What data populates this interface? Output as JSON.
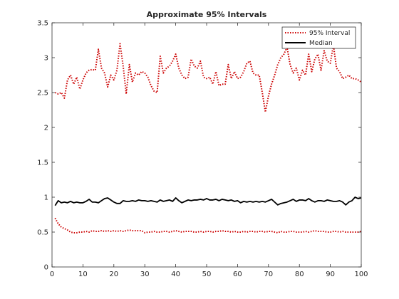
{
  "chart_data": {
    "type": "line",
    "title": "Approximate 95% Intervals",
    "xlabel": "",
    "ylabel": "",
    "xlim": [
      0,
      100
    ],
    "ylim": [
      0,
      3.5
    ],
    "xticks": [
      0,
      10,
      20,
      30,
      40,
      50,
      60,
      70,
      80,
      90,
      100
    ],
    "yticks": [
      0,
      0.5,
      1,
      1.5,
      2,
      2.5,
      3,
      3.5
    ],
    "grid": false,
    "legend_position": "top-right",
    "legend": [
      {
        "label": "95% Interval",
        "color": "#cc0000",
        "style": "dotted"
      },
      {
        "label": "Median",
        "color": "#000000",
        "style": "solid"
      }
    ],
    "series": [
      {
        "name": "95% Interval",
        "role": "upper",
        "color": "#cc0000",
        "style": "dotted",
        "x": [
          1,
          2,
          3,
          4,
          5,
          6,
          7,
          8,
          9,
          10,
          11,
          12,
          13,
          14,
          15,
          16,
          17,
          18,
          19,
          20,
          21,
          22,
          23,
          24,
          25,
          26,
          27,
          28,
          29,
          30,
          31,
          32,
          33,
          34,
          35,
          36,
          37,
          38,
          39,
          40,
          41,
          42,
          43,
          44,
          45,
          46,
          47,
          48,
          49,
          50,
          51,
          52,
          53,
          54,
          55,
          56,
          57,
          58,
          59,
          60,
          61,
          62,
          63,
          64,
          65,
          66,
          67,
          68,
          69,
          70,
          71,
          72,
          73,
          74,
          75,
          76,
          77,
          78,
          79,
          80,
          81,
          82,
          83,
          84,
          85,
          86,
          87,
          88,
          89,
          90,
          91,
          92,
          93,
          94,
          95,
          96,
          97,
          98,
          99,
          100
        ],
        "y": [
          2.5,
          2.48,
          2.5,
          2.42,
          2.68,
          2.75,
          2.62,
          2.72,
          2.55,
          2.68,
          2.78,
          2.82,
          2.83,
          2.82,
          3.12,
          2.85,
          2.78,
          2.58,
          2.75,
          2.68,
          2.82,
          3.2,
          2.88,
          2.48,
          2.9,
          2.65,
          2.78,
          2.75,
          2.8,
          2.78,
          2.72,
          2.6,
          2.52,
          2.5,
          3.02,
          2.78,
          2.85,
          2.88,
          2.95,
          3.05,
          2.85,
          2.75,
          2.7,
          2.72,
          2.98,
          2.88,
          2.85,
          2.95,
          2.72,
          2.7,
          2.72,
          2.62,
          2.8,
          2.6,
          2.62,
          2.62,
          2.9,
          2.7,
          2.8,
          2.7,
          2.72,
          2.8,
          2.92,
          2.95,
          2.78,
          2.75,
          2.75,
          2.5,
          2.22,
          2.45,
          2.62,
          2.75,
          2.9,
          3.0,
          3.05,
          3.15,
          2.9,
          2.78,
          2.85,
          2.68,
          2.82,
          2.75,
          3.05,
          2.8,
          2.98,
          3.05,
          2.82,
          3.1,
          2.95,
          2.92,
          3.18,
          2.85,
          2.8,
          2.7,
          2.72,
          2.75,
          2.7,
          2.7,
          2.68,
          2.65
        ]
      },
      {
        "name": "Median",
        "role": "median",
        "color": "#000000",
        "style": "solid",
        "x": [
          1,
          2,
          3,
          4,
          5,
          6,
          7,
          8,
          9,
          10,
          11,
          12,
          13,
          14,
          15,
          16,
          17,
          18,
          19,
          20,
          21,
          22,
          23,
          24,
          25,
          26,
          27,
          28,
          29,
          30,
          31,
          32,
          33,
          34,
          35,
          36,
          37,
          38,
          39,
          40,
          41,
          42,
          43,
          44,
          45,
          46,
          47,
          48,
          49,
          50,
          51,
          52,
          53,
          54,
          55,
          56,
          57,
          58,
          59,
          60,
          61,
          62,
          63,
          64,
          65,
          66,
          67,
          68,
          69,
          70,
          71,
          72,
          73,
          74,
          75,
          76,
          77,
          78,
          79,
          80,
          81,
          82,
          83,
          84,
          85,
          86,
          87,
          88,
          89,
          90,
          91,
          92,
          93,
          94,
          95,
          96,
          97,
          98,
          99,
          100
        ],
        "y": [
          0.88,
          0.95,
          0.92,
          0.93,
          0.92,
          0.94,
          0.92,
          0.93,
          0.92,
          0.92,
          0.94,
          0.97,
          0.93,
          0.93,
          0.92,
          0.95,
          0.98,
          0.99,
          0.96,
          0.93,
          0.91,
          0.91,
          0.95,
          0.94,
          0.94,
          0.95,
          0.94,
          0.96,
          0.95,
          0.95,
          0.94,
          0.95,
          0.94,
          0.93,
          0.96,
          0.94,
          0.95,
          0.96,
          0.94,
          0.99,
          0.95,
          0.92,
          0.94,
          0.96,
          0.95,
          0.96,
          0.96,
          0.97,
          0.96,
          0.98,
          0.96,
          0.96,
          0.97,
          0.95,
          0.97,
          0.96,
          0.95,
          0.96,
          0.94,
          0.95,
          0.92,
          0.94,
          0.93,
          0.94,
          0.93,
          0.94,
          0.93,
          0.94,
          0.93,
          0.95,
          0.97,
          0.93,
          0.89,
          0.91,
          0.92,
          0.93,
          0.95,
          0.97,
          0.94,
          0.96,
          0.96,
          0.95,
          0.98,
          0.95,
          0.93,
          0.95,
          0.95,
          0.94,
          0.96,
          0.95,
          0.94,
          0.94,
          0.95,
          0.93,
          0.89,
          0.93,
          0.95,
          1.0,
          0.98,
          0.99
        ]
      },
      {
        "name": "95% Interval",
        "role": "lower",
        "color": "#cc0000",
        "style": "dotted",
        "x": [
          1,
          2,
          3,
          4,
          5,
          6,
          7,
          8,
          9,
          10,
          11,
          12,
          13,
          14,
          15,
          16,
          17,
          18,
          19,
          20,
          21,
          22,
          23,
          24,
          25,
          26,
          27,
          28,
          29,
          30,
          31,
          32,
          33,
          34,
          35,
          36,
          37,
          38,
          39,
          40,
          41,
          42,
          43,
          44,
          45,
          46,
          47,
          48,
          49,
          50,
          51,
          52,
          53,
          54,
          55,
          56,
          57,
          58,
          59,
          60,
          61,
          62,
          63,
          64,
          65,
          66,
          67,
          68,
          69,
          70,
          71,
          72,
          73,
          74,
          75,
          76,
          77,
          78,
          79,
          80,
          81,
          82,
          83,
          84,
          85,
          86,
          87,
          88,
          89,
          90,
          91,
          92,
          93,
          94,
          95,
          96,
          97,
          98,
          99,
          100
        ],
        "y": [
          0.7,
          0.62,
          0.57,
          0.55,
          0.53,
          0.5,
          0.49,
          0.49,
          0.5,
          0.5,
          0.51,
          0.5,
          0.52,
          0.51,
          0.51,
          0.52,
          0.51,
          0.52,
          0.51,
          0.52,
          0.51,
          0.52,
          0.51,
          0.52,
          0.53,
          0.52,
          0.52,
          0.52,
          0.52,
          0.49,
          0.5,
          0.5,
          0.51,
          0.5,
          0.5,
          0.51,
          0.51,
          0.5,
          0.51,
          0.52,
          0.51,
          0.5,
          0.51,
          0.51,
          0.51,
          0.5,
          0.5,
          0.51,
          0.5,
          0.51,
          0.51,
          0.5,
          0.51,
          0.51,
          0.52,
          0.51,
          0.51,
          0.5,
          0.51,
          0.5,
          0.5,
          0.51,
          0.5,
          0.51,
          0.51,
          0.5,
          0.51,
          0.51,
          0.5,
          0.51,
          0.51,
          0.5,
          0.49,
          0.51,
          0.5,
          0.5,
          0.51,
          0.51,
          0.5,
          0.5,
          0.5,
          0.51,
          0.5,
          0.51,
          0.52,
          0.51,
          0.51,
          0.51,
          0.5,
          0.5,
          0.51,
          0.51,
          0.5,
          0.51,
          0.5,
          0.5,
          0.5,
          0.5,
          0.5,
          0.51
        ]
      }
    ]
  }
}
